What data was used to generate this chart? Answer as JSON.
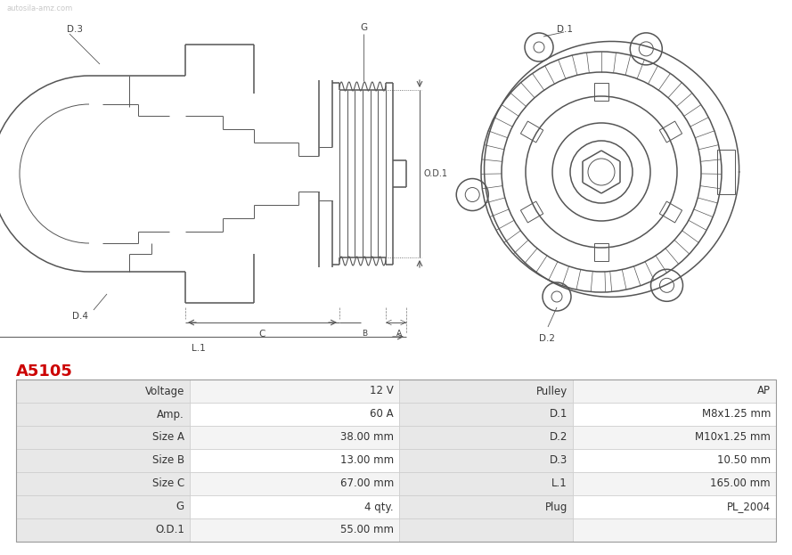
{
  "title": "A5105",
  "title_color": "#cc0000",
  "background_color": "#ffffff",
  "table": {
    "left_col1_headers": [
      "Voltage",
      "Amp.",
      "Size A",
      "Size B",
      "Size C",
      "G",
      "O.D.1"
    ],
    "left_col2_values": [
      "12 V",
      "60 A",
      "38.00 mm",
      "13.00 mm",
      "67.00 mm",
      "4 qty.",
      "55.00 mm"
    ],
    "right_col1_headers": [
      "Pulley",
      "D.1",
      "D.2",
      "D.3",
      "L.1",
      "Plug",
      ""
    ],
    "right_col2_values": [
      "AP",
      "M8x1.25 mm",
      "M10x1.25 mm",
      "10.50 mm",
      "165.00 mm",
      "PL_2004",
      ""
    ],
    "header_bg": "#e8e8e8",
    "row_bg_odd": "#f4f4f4",
    "row_bg_even": "#ffffff",
    "border_color": "#cccccc",
    "text_color": "#333333",
    "font_size": 8.5
  }
}
